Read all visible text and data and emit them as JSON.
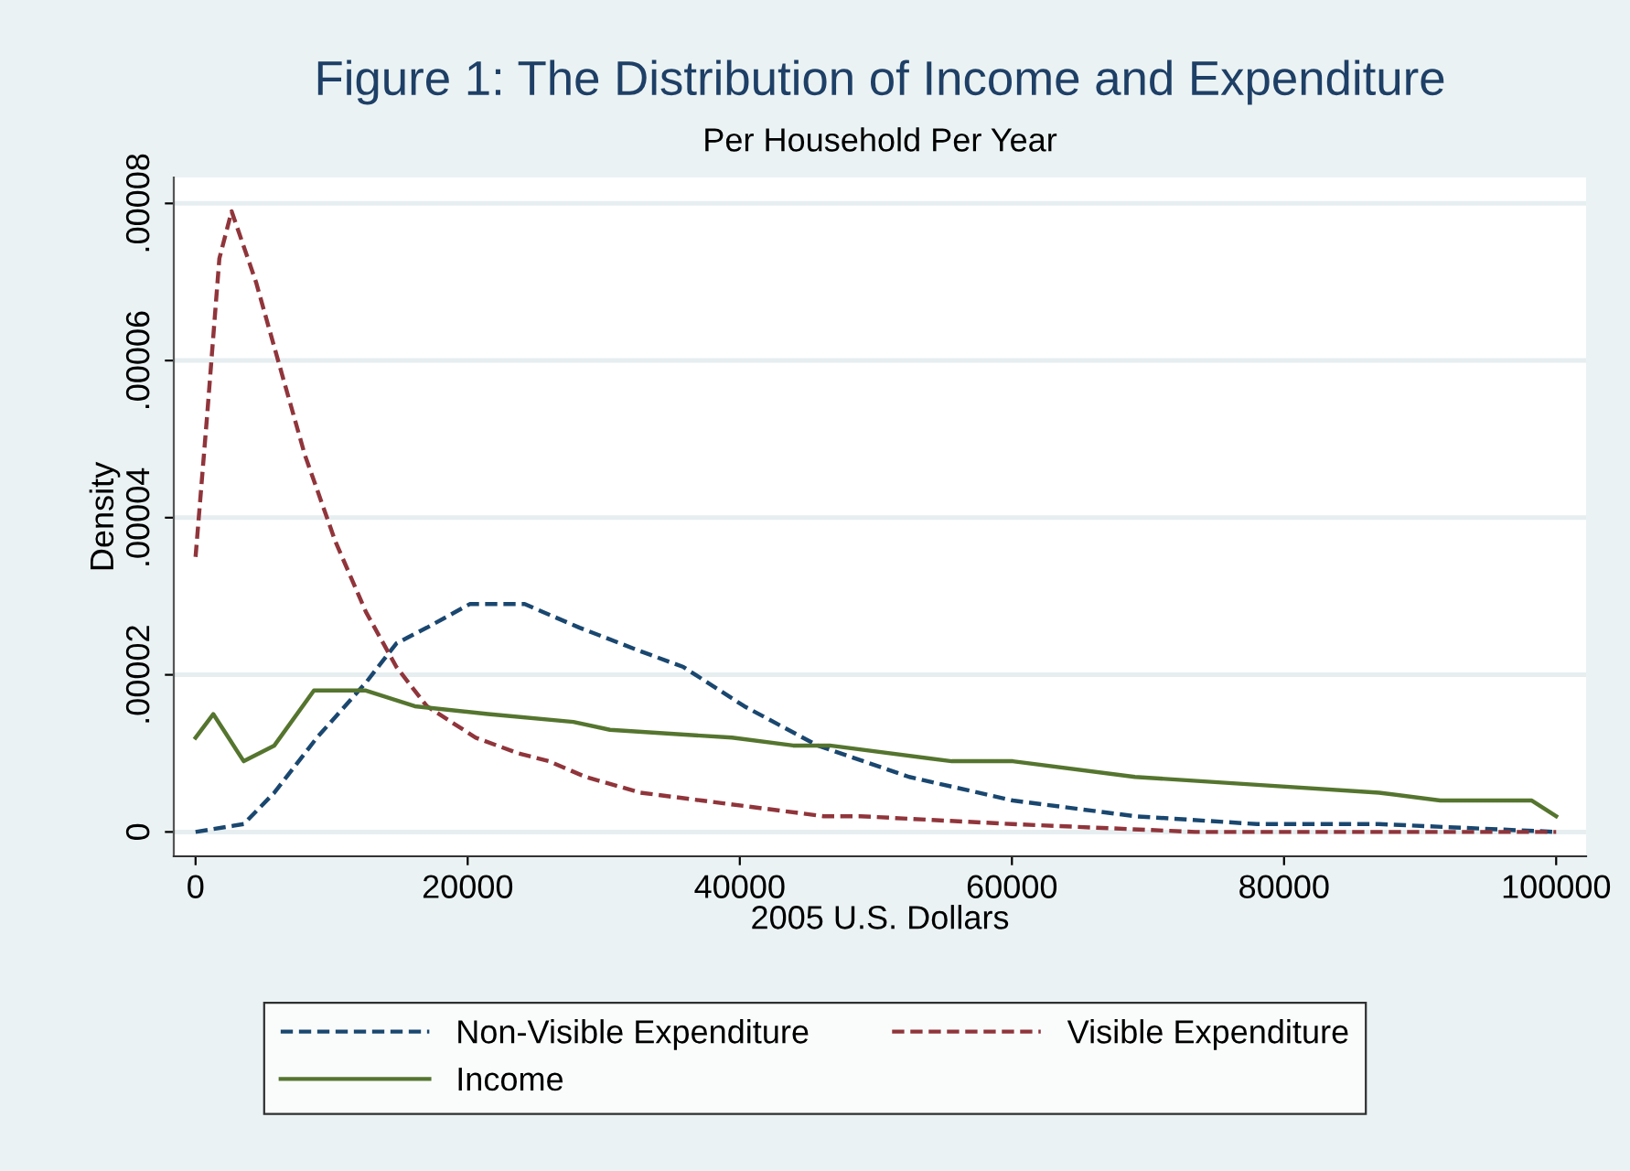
{
  "chart_data": {
    "type": "line",
    "title": "Figure 1: The Distribution of Income and Expenditure",
    "subtitle": "Per Household Per Year",
    "xlabel": "2005 U.S. Dollars",
    "ylabel": "Density",
    "xlim": [
      -1600,
      102200
    ],
    "ylim": [
      -3.1e-06,
      8.33e-05
    ],
    "xticks": [
      0,
      20000,
      40000,
      60000,
      80000,
      100000
    ],
    "yticks": [
      {
        "value": 0,
        "label": "0"
      },
      {
        "value": 2e-05,
        "label": ".00002"
      },
      {
        "value": 4e-05,
        "label": ".00004"
      },
      {
        "value": 6e-05,
        "label": ".00006"
      },
      {
        "value": 8e-05,
        "label": ".00008"
      }
    ],
    "grid": "y",
    "legend": "bottom",
    "marker": "none",
    "series": [
      {
        "name": "Non-Visible Expenditure",
        "color": "#1a476f",
        "line_style": "dashed",
        "x": [
          0,
          3540,
          5790,
          8920,
          12520,
          14760,
          17000,
          20150,
          24190,
          28220,
          32700,
          35850,
          40330,
          45720,
          52450,
          60070,
          69040,
          78020,
          86990,
          100000
        ],
        "values": [
          0,
          1e-06,
          5e-06,
          1.2e-05,
          1.9e-05,
          2.4e-05,
          2.6e-05,
          2.9e-05,
          2.9e-05,
          2.6e-05,
          2.3e-05,
          2.1e-05,
          1.6e-05,
          1.1e-05,
          7e-06,
          4e-06,
          2e-06,
          1e-06,
          1e-06,
          0
        ]
      },
      {
        "name": "Visible Expenditure",
        "color": "#90353b",
        "line_style": "dashed",
        "x": [
          0,
          850,
          1750,
          2650,
          4440,
          6230,
          8030,
          10270,
          12520,
          14760,
          17000,
          20590,
          23730,
          25980,
          28670,
          32700,
          37190,
          41680,
          46160,
          48860,
          60030,
          73490,
          100000
        ],
        "values": [
          3.5e-05,
          5.3e-05,
          7.3e-05,
          7.9e-05,
          7e-05,
          5.9e-05,
          4.8e-05,
          3.7e-05,
          2.8e-05,
          2.1e-05,
          1.6e-05,
          1.2e-05,
          1e-05,
          9e-06,
          7e-06,
          5e-06,
          4e-06,
          3e-06,
          2e-06,
          2e-06,
          1e-06,
          0,
          0
        ]
      },
      {
        "name": "Income",
        "color": "#55752f",
        "line_style": "solid",
        "x": [
          0,
          1300,
          3540,
          5790,
          8700,
          12520,
          16110,
          21490,
          27770,
          30460,
          39430,
          43920,
          46610,
          55580,
          60070,
          69040,
          78020,
          86990,
          91480,
          98210,
          100000
        ],
        "values": [
          1.2e-05,
          1.5e-05,
          9e-06,
          1.1e-05,
          1.8e-05,
          1.8e-05,
          1.6e-05,
          1.5e-05,
          1.4e-05,
          1.3e-05,
          1.2e-05,
          1.1e-05,
          1.1e-05,
          9e-06,
          9e-06,
          7e-06,
          6e-06,
          5e-06,
          4e-06,
          4e-06,
          2e-06
        ]
      }
    ]
  }
}
